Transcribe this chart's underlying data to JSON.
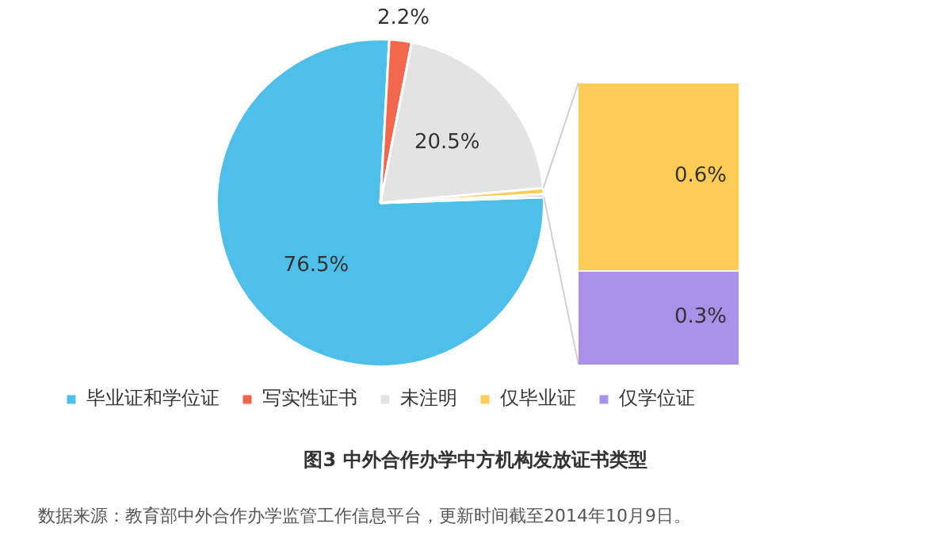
{
  "chart_data": [
    {
      "type": "pie",
      "title": "图3  中外合作办学中方机构发放证书类型",
      "categories": [
        "毕业证和学位证",
        "写实性证书",
        "未注明",
        "仅毕业证",
        "仅学位证"
      ],
      "values": [
        76.5,
        2.2,
        20.5,
        0.6,
        0.3
      ],
      "colors": [
        "#4dbfe8",
        "#f2674d",
        "#e3e3e3",
        "#ffcc55",
        "#a990e8"
      ],
      "value_labels": [
        "76.5%",
        "2.2%",
        "20.5%",
        null,
        null
      ],
      "legend": "bottom",
      "annotations": [
        "数据来源：教育部中外合作办学监管工作信息平台，更新时间截至2014年10月9日。"
      ]
    },
    {
      "type": "bar",
      "stacked": true,
      "categories": [
        null
      ],
      "tick_labels": false,
      "series": [
        {
          "color": "#a990e8",
          "values": [
            0.3
          ],
          "value_labels": [
            "0.3%"
          ]
        },
        {
          "color": "#ffcc55",
          "values": [
            0.6
          ],
          "value_labels": [
            "0.6%"
          ]
        }
      ]
    }
  ]
}
